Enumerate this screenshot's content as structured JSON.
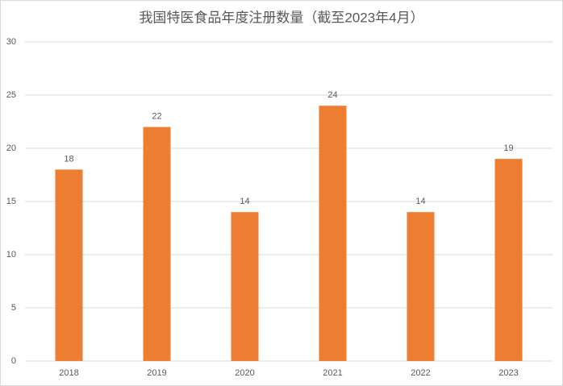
{
  "chart_data": {
    "type": "bar",
    "title": "我国特医食品年度注册数量（截至2023年4月）",
    "categories": [
      "2018",
      "2019",
      "2020",
      "2021",
      "2022",
      "2023"
    ],
    "values": [
      18,
      22,
      14,
      24,
      14,
      19
    ],
    "color": "#ed7d31",
    "ylim": [
      0,
      30
    ],
    "yticks": [
      0,
      5,
      10,
      15,
      20,
      25,
      30
    ],
    "grid": true
  }
}
